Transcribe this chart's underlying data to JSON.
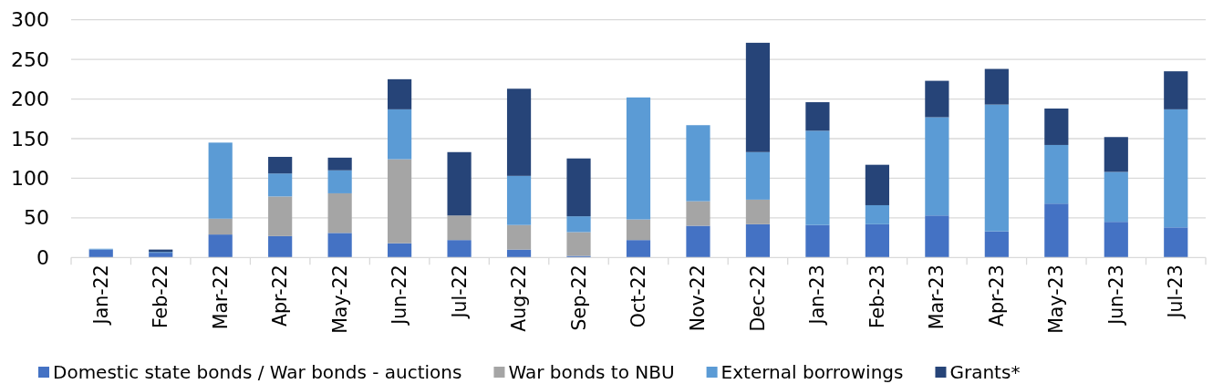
{
  "chart_data": {
    "type": "bar",
    "stacked": true,
    "categories": [
      "Jan-22",
      "Feb-22",
      "Mar-22",
      "Apr-22",
      "May-22",
      "Jun-22",
      "Jul-22",
      "Aug-22",
      "Sep-22",
      "Oct-22",
      "Nov-22",
      "Dec-22",
      "Jan-23",
      "Feb-23",
      "Mar-23",
      "Apr-23",
      "May-23",
      "Jun-23",
      "Jul-23"
    ],
    "series": [
      {
        "name": "Domestic state bonds / War bonds - auctions",
        "color": "#4472c4",
        "values": [
          10,
          6,
          29,
          27,
          31,
          18,
          22,
          10,
          2,
          22,
          40,
          42,
          41,
          42,
          53,
          33,
          68,
          45,
          38
        ]
      },
      {
        "name": "War bonds to NBU",
        "color": "#a5a5a5",
        "values": [
          null,
          null,
          20,
          50,
          50,
          106,
          31,
          31,
          30,
          26,
          31,
          31,
          null,
          null,
          null,
          null,
          null,
          null,
          null
        ]
      },
      {
        "name": "External borrowings",
        "color": "#5b9bd5",
        "values": [
          1,
          1,
          96,
          29,
          29,
          63,
          null,
          62,
          20,
          154,
          96,
          60,
          119,
          24,
          124,
          160,
          74,
          63,
          149
        ]
      },
      {
        "name": "Grants*",
        "color": "#264478",
        "values": [
          null,
          3,
          null,
          21,
          16,
          38,
          80,
          110,
          73,
          null,
          null,
          138,
          36,
          51,
          46,
          45,
          46,
          44,
          48
        ]
      }
    ],
    "ylim": [
      0,
      300
    ],
    "yticks": [
      0,
      50,
      100,
      150,
      200,
      250,
      300
    ],
    "grid": "y",
    "legend": "bottom"
  }
}
